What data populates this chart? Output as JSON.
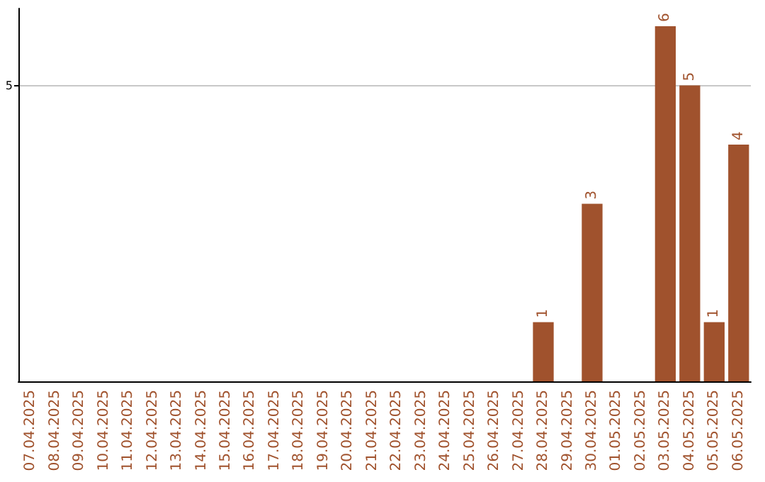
{
  "chart_data": {
    "type": "bar",
    "categories": [
      "07.04.2025",
      "08.04.2025",
      "09.04.2025",
      "10.04.2025",
      "11.04.2025",
      "12.04.2025",
      "13.04.2025",
      "14.04.2025",
      "15.04.2025",
      "16.04.2025",
      "17.04.2025",
      "18.04.2025",
      "19.04.2025",
      "20.04.2025",
      "21.04.2025",
      "22.04.2025",
      "23.04.2025",
      "24.04.2025",
      "25.04.2025",
      "26.04.2025",
      "27.04.2025",
      "28.04.2025",
      "29.04.2025",
      "30.04.2025",
      "01.05.2025",
      "02.05.2025",
      "03.05.2025",
      "04.05.2025",
      "05.05.2025",
      "06.05.2025"
    ],
    "values": [
      null,
      null,
      null,
      null,
      null,
      null,
      null,
      null,
      null,
      null,
      null,
      null,
      null,
      null,
      null,
      null,
      null,
      null,
      null,
      null,
      null,
      1,
      null,
      3,
      null,
      null,
      6,
      5,
      1,
      4
    ],
    "value_labels": [
      null,
      null,
      null,
      null,
      null,
      null,
      null,
      null,
      null,
      null,
      null,
      null,
      null,
      null,
      null,
      null,
      null,
      null,
      null,
      null,
      null,
      "1",
      null,
      "3",
      null,
      null,
      "6",
      "5",
      "1",
      "4"
    ],
    "color": "#a0522d",
    "ylim": [
      0,
      6.3
    ],
    "yticks": [
      5
    ],
    "grid": "y"
  }
}
